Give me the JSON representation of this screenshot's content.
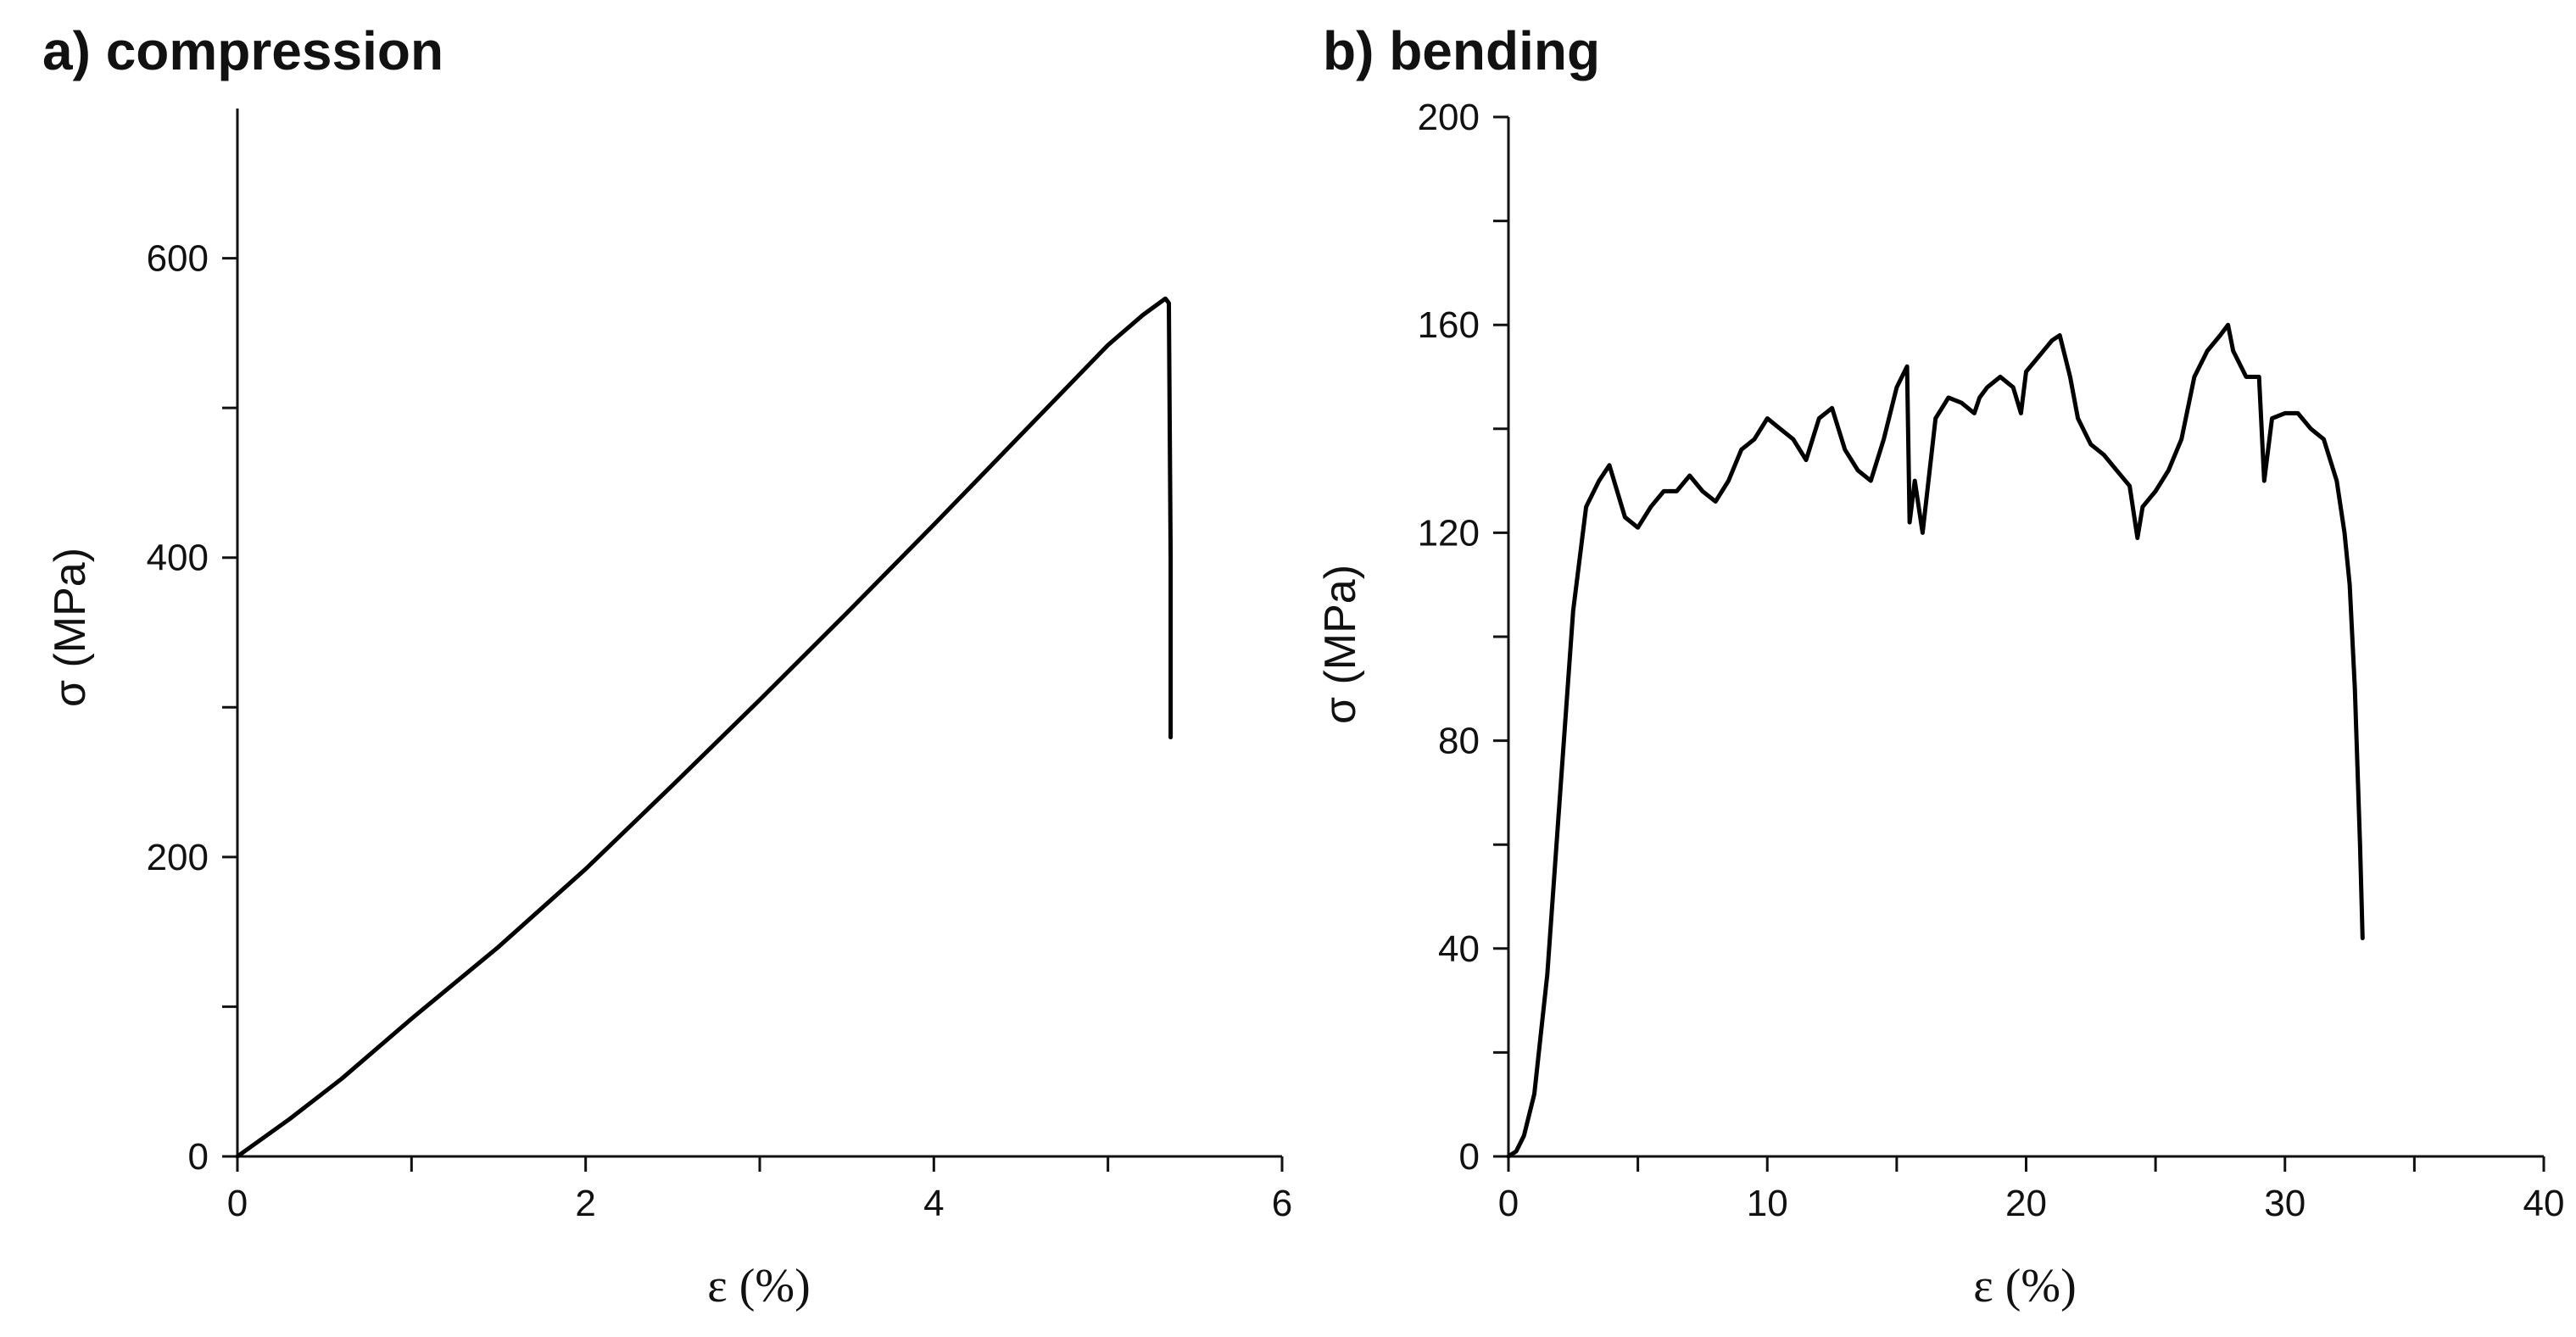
{
  "chart_data": [
    {
      "type": "line",
      "title": "a) compression",
      "xlabel": "ε (%)",
      "ylabel": "σ (MPa)",
      "xlim": [
        0,
        6
      ],
      "ylim": [
        0,
        700
      ],
      "x_ticks_major": [
        0,
        2,
        4,
        6
      ],
      "x_ticks_minor": [
        1,
        3,
        5
      ],
      "y_ticks_major": [
        0,
        200,
        400,
        600
      ],
      "y_ticks_minor": [
        100,
        300,
        500
      ],
      "grid": false,
      "series": [
        {
          "x": [
            0,
            0.3,
            0.6,
            1.0,
            1.5,
            2.0,
            2.5,
            3.0,
            3.5,
            4.0,
            4.5,
            5.0,
            5.2,
            5.33,
            5.35,
            5.36,
            5.36
          ],
          "y": [
            0,
            25,
            52,
            92,
            140,
            192,
            248,
            305,
            363,
            422,
            482,
            542,
            562,
            573,
            570,
            400,
            280
          ]
        }
      ]
    },
    {
      "type": "line",
      "title": "b) bending",
      "xlabel": "ε (%)",
      "ylabel": "σ (MPa)",
      "xlim": [
        0,
        40
      ],
      "ylim": [
        0,
        200
      ],
      "x_ticks_major": [
        0,
        10,
        20,
        30,
        40
      ],
      "x_ticks_minor": [
        5,
        15,
        25,
        35
      ],
      "y_ticks_major": [
        0,
        40,
        80,
        120,
        160,
        200
      ],
      "y_ticks_minor": [
        20,
        60,
        100,
        140,
        180
      ],
      "grid": false,
      "series": [
        {
          "x": [
            0,
            0.3,
            0.6,
            1.0,
            1.5,
            2.0,
            2.5,
            3.0,
            3.5,
            3.9,
            4.2,
            4.5,
            5.0,
            5.5,
            6.0,
            6.5,
            7.0,
            7.5,
            8.0,
            8.5,
            9.0,
            9.5,
            10.0,
            10.5,
            11.0,
            11.5,
            12.0,
            12.5,
            13.0,
            13.5,
            14.0,
            14.5,
            15.0,
            15.4,
            15.5,
            15.7,
            16.0,
            16.5,
            17.0,
            17.5,
            18.0,
            18.2,
            18.5,
            19.0,
            19.5,
            19.8,
            20.0,
            20.5,
            21.0,
            21.3,
            21.7,
            22.0,
            22.5,
            23.0,
            23.5,
            24.0,
            24.3,
            24.5,
            25.0,
            25.5,
            26.0,
            26.5,
            27.0,
            27.5,
            27.8,
            28.0,
            28.5,
            29.0,
            29.2,
            29.5,
            30.0,
            30.5,
            31.0,
            31.5,
            32.0,
            32.3,
            32.5,
            32.7,
            32.9,
            33.0
          ],
          "y": [
            0,
            1,
            4,
            12,
            35,
            70,
            105,
            125,
            130,
            133,
            128,
            123,
            121,
            125,
            128,
            128,
            131,
            128,
            126,
            130,
            136,
            138,
            142,
            140,
            138,
            134,
            142,
            144,
            136,
            132,
            130,
            138,
            148,
            152,
            122,
            130,
            120,
            142,
            146,
            145,
            143,
            146,
            148,
            150,
            148,
            143,
            151,
            154,
            157,
            158,
            150,
            142,
            137,
            135,
            132,
            129,
            119,
            125,
            128,
            132,
            138,
            150,
            155,
            158,
            160,
            155,
            150,
            150,
            130,
            142,
            143,
            143,
            140,
            138,
            130,
            120,
            110,
            90,
            60,
            42
          ]
        }
      ]
    }
  ]
}
